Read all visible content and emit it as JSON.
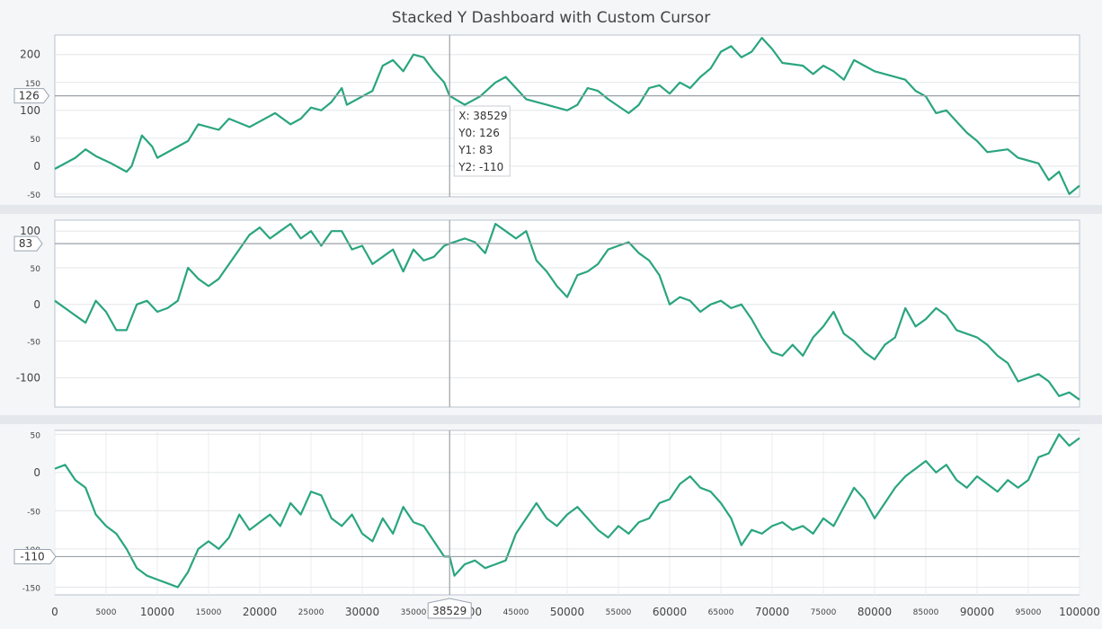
{
  "chart_data": {
    "title": "Stacked Y Dashboard with Custom Cursor",
    "type": "line",
    "x_range": [
      0,
      100000
    ],
    "x_major_ticks": [
      0,
      10000,
      20000,
      30000,
      40000,
      50000,
      60000,
      70000,
      80000,
      90000,
      100000
    ],
    "x_minor_ticks": [
      5000,
      15000,
      25000,
      35000,
      45000,
      55000,
      65000,
      75000,
      85000,
      95000
    ],
    "cursor": {
      "x": 38529,
      "x_label": "38529",
      "values": [
        126,
        83,
        -110
      ],
      "tooltip": [
        "X: 38529",
        "Y0: 126",
        "Y1: 83",
        "Y2: -110"
      ]
    },
    "panels": [
      {
        "name": "Y0",
        "ylim": [
          -55,
          235
        ],
        "major_ticks": [
          0,
          100,
          200
        ],
        "minor_ticks": [
          -50,
          50,
          150
        ],
        "cursor_label": "126",
        "points": [
          [
            0,
            -5
          ],
          [
            2000,
            15
          ],
          [
            3000,
            30
          ],
          [
            4000,
            18
          ],
          [
            5500,
            5
          ],
          [
            7000,
            -10
          ],
          [
            7500,
            0
          ],
          [
            8500,
            55
          ],
          [
            9500,
            35
          ],
          [
            10000,
            15
          ],
          [
            12000,
            35
          ],
          [
            13000,
            45
          ],
          [
            14000,
            75
          ],
          [
            16000,
            65
          ],
          [
            17000,
            85
          ],
          [
            19000,
            70
          ],
          [
            20000,
            80
          ],
          [
            21500,
            95
          ],
          [
            23000,
            75
          ],
          [
            24000,
            85
          ],
          [
            25000,
            105
          ],
          [
            26000,
            100
          ],
          [
            27000,
            115
          ],
          [
            28000,
            140
          ],
          [
            28500,
            110
          ],
          [
            30000,
            125
          ],
          [
            31000,
            135
          ],
          [
            32000,
            180
          ],
          [
            33000,
            190
          ],
          [
            34000,
            170
          ],
          [
            35000,
            200
          ],
          [
            36000,
            195
          ],
          [
            37000,
            170
          ],
          [
            38000,
            150
          ],
          [
            38529,
            126
          ],
          [
            40000,
            110
          ],
          [
            41500,
            125
          ],
          [
            43000,
            150
          ],
          [
            44000,
            160
          ],
          [
            45000,
            140
          ],
          [
            46000,
            120
          ],
          [
            48000,
            110
          ],
          [
            50000,
            100
          ],
          [
            51000,
            110
          ],
          [
            52000,
            140
          ],
          [
            53000,
            135
          ],
          [
            54000,
            120
          ],
          [
            56000,
            95
          ],
          [
            57000,
            110
          ],
          [
            58000,
            140
          ],
          [
            59000,
            145
          ],
          [
            60000,
            130
          ],
          [
            61000,
            150
          ],
          [
            62000,
            140
          ],
          [
            63000,
            160
          ],
          [
            64000,
            175
          ],
          [
            65000,
            205
          ],
          [
            66000,
            215
          ],
          [
            67000,
            195
          ],
          [
            68000,
            205
          ],
          [
            69000,
            230
          ],
          [
            70000,
            210
          ],
          [
            71000,
            185
          ],
          [
            73000,
            180
          ],
          [
            74000,
            165
          ],
          [
            75000,
            180
          ],
          [
            76000,
            170
          ],
          [
            77000,
            155
          ],
          [
            78000,
            190
          ],
          [
            79000,
            180
          ],
          [
            80000,
            170
          ],
          [
            81000,
            165
          ],
          [
            83000,
            155
          ],
          [
            84000,
            135
          ],
          [
            85000,
            125
          ],
          [
            86000,
            95
          ],
          [
            87000,
            100
          ],
          [
            88000,
            80
          ],
          [
            89000,
            60
          ],
          [
            90000,
            45
          ],
          [
            91000,
            25
          ],
          [
            93000,
            30
          ],
          [
            94000,
            15
          ],
          [
            96000,
            5
          ],
          [
            97000,
            -25
          ],
          [
            98000,
            -10
          ],
          [
            99000,
            -50
          ],
          [
            100000,
            -35
          ]
        ]
      },
      {
        "name": "Y1",
        "ylim": [
          -140,
          115
        ],
        "major_ticks": [
          -100,
          0,
          100
        ],
        "minor_ticks": [
          -50,
          50
        ],
        "cursor_label": "83",
        "points": [
          [
            0,
            5
          ],
          [
            1500,
            -10
          ],
          [
            3000,
            -25
          ],
          [
            4000,
            5
          ],
          [
            5000,
            -10
          ],
          [
            6000,
            -35
          ],
          [
            7000,
            -35
          ],
          [
            8000,
            0
          ],
          [
            9000,
            5
          ],
          [
            10000,
            -10
          ],
          [
            11000,
            -5
          ],
          [
            12000,
            5
          ],
          [
            13000,
            50
          ],
          [
            14000,
            35
          ],
          [
            15000,
            25
          ],
          [
            16000,
            35
          ],
          [
            17000,
            55
          ],
          [
            18000,
            75
          ],
          [
            19000,
            95
          ],
          [
            20000,
            105
          ],
          [
            21000,
            90
          ],
          [
            22000,
            100
          ],
          [
            23000,
            110
          ],
          [
            24000,
            90
          ],
          [
            25000,
            100
          ],
          [
            26000,
            80
          ],
          [
            27000,
            100
          ],
          [
            28000,
            100
          ],
          [
            29000,
            75
          ],
          [
            30000,
            80
          ],
          [
            31000,
            55
          ],
          [
            32000,
            65
          ],
          [
            33000,
            75
          ],
          [
            34000,
            45
          ],
          [
            35000,
            75
          ],
          [
            36000,
            60
          ],
          [
            37000,
            65
          ],
          [
            38000,
            80
          ],
          [
            38529,
            83
          ],
          [
            40000,
            90
          ],
          [
            41000,
            85
          ],
          [
            42000,
            70
          ],
          [
            43000,
            110
          ],
          [
            44000,
            100
          ],
          [
            45000,
            90
          ],
          [
            46000,
            100
          ],
          [
            47000,
            60
          ],
          [
            48000,
            45
          ],
          [
            49000,
            25
          ],
          [
            50000,
            10
          ],
          [
            51000,
            40
          ],
          [
            52000,
            45
          ],
          [
            53000,
            55
          ],
          [
            54000,
            75
          ],
          [
            55000,
            80
          ],
          [
            56000,
            85
          ],
          [
            57000,
            70
          ],
          [
            58000,
            60
          ],
          [
            59000,
            40
          ],
          [
            60000,
            0
          ],
          [
            61000,
            10
          ],
          [
            62000,
            5
          ],
          [
            63000,
            -10
          ],
          [
            64000,
            0
          ],
          [
            65000,
            5
          ],
          [
            66000,
            -5
          ],
          [
            67000,
            0
          ],
          [
            68000,
            -20
          ],
          [
            69000,
            -45
          ],
          [
            70000,
            -65
          ],
          [
            71000,
            -70
          ],
          [
            72000,
            -55
          ],
          [
            73000,
            -70
          ],
          [
            74000,
            -45
          ],
          [
            75000,
            -30
          ],
          [
            76000,
            -10
          ],
          [
            77000,
            -40
          ],
          [
            78000,
            -50
          ],
          [
            79000,
            -65
          ],
          [
            80000,
            -75
          ],
          [
            81000,
            -55
          ],
          [
            82000,
            -45
          ],
          [
            83000,
            -5
          ],
          [
            84000,
            -30
          ],
          [
            85000,
            -20
          ],
          [
            86000,
            -5
          ],
          [
            87000,
            -15
          ],
          [
            88000,
            -35
          ],
          [
            89000,
            -40
          ],
          [
            90000,
            -45
          ],
          [
            91000,
            -55
          ],
          [
            92000,
            -70
          ],
          [
            93000,
            -80
          ],
          [
            94000,
            -105
          ],
          [
            95000,
            -100
          ],
          [
            96000,
            -95
          ],
          [
            97000,
            -105
          ],
          [
            98000,
            -125
          ],
          [
            99000,
            -120
          ],
          [
            100000,
            -130
          ]
        ]
      },
      {
        "name": "Y2",
        "ylim": [
          -160,
          55
        ],
        "major_ticks": [
          0
        ],
        "minor_ticks": [
          -150,
          -100,
          -50,
          50
        ],
        "cursor_label": "-110",
        "points": [
          [
            0,
            5
          ],
          [
            1000,
            10
          ],
          [
            2000,
            -10
          ],
          [
            3000,
            -20
          ],
          [
            4000,
            -55
          ],
          [
            5000,
            -70
          ],
          [
            6000,
            -80
          ],
          [
            7000,
            -100
          ],
          [
            8000,
            -125
          ],
          [
            9000,
            -135
          ],
          [
            10000,
            -140
          ],
          [
            11000,
            -145
          ],
          [
            12000,
            -150
          ],
          [
            13000,
            -130
          ],
          [
            14000,
            -100
          ],
          [
            15000,
            -90
          ],
          [
            16000,
            -100
          ],
          [
            17000,
            -85
          ],
          [
            18000,
            -55
          ],
          [
            19000,
            -75
          ],
          [
            20000,
            -65
          ],
          [
            21000,
            -55
          ],
          [
            22000,
            -70
          ],
          [
            23000,
            -40
          ],
          [
            24000,
            -55
          ],
          [
            25000,
            -25
          ],
          [
            26000,
            -30
          ],
          [
            27000,
            -60
          ],
          [
            28000,
            -70
          ],
          [
            29000,
            -55
          ],
          [
            30000,
            -80
          ],
          [
            31000,
            -90
          ],
          [
            32000,
            -60
          ],
          [
            33000,
            -80
          ],
          [
            34000,
            -45
          ],
          [
            35000,
            -65
          ],
          [
            36000,
            -70
          ],
          [
            37000,
            -90
          ],
          [
            38000,
            -110
          ],
          [
            38529,
            -110
          ],
          [
            39000,
            -135
          ],
          [
            40000,
            -120
          ],
          [
            41000,
            -115
          ],
          [
            42000,
            -125
          ],
          [
            43000,
            -120
          ],
          [
            44000,
            -115
          ],
          [
            45000,
            -80
          ],
          [
            46000,
            -60
          ],
          [
            47000,
            -40
          ],
          [
            48000,
            -60
          ],
          [
            49000,
            -70
          ],
          [
            50000,
            -55
          ],
          [
            51000,
            -45
          ],
          [
            52000,
            -60
          ],
          [
            53000,
            -75
          ],
          [
            54000,
            -85
          ],
          [
            55000,
            -70
          ],
          [
            56000,
            -80
          ],
          [
            57000,
            -65
          ],
          [
            58000,
            -60
          ],
          [
            59000,
            -40
          ],
          [
            60000,
            -35
          ],
          [
            61000,
            -15
          ],
          [
            62000,
            -5
          ],
          [
            63000,
            -20
          ],
          [
            64000,
            -25
          ],
          [
            65000,
            -40
          ],
          [
            66000,
            -60
          ],
          [
            67000,
            -95
          ],
          [
            68000,
            -75
          ],
          [
            69000,
            -80
          ],
          [
            70000,
            -70
          ],
          [
            71000,
            -65
          ],
          [
            72000,
            -75
          ],
          [
            73000,
            -70
          ],
          [
            74000,
            -80
          ],
          [
            75000,
            -60
          ],
          [
            76000,
            -70
          ],
          [
            77000,
            -45
          ],
          [
            78000,
            -20
          ],
          [
            79000,
            -35
          ],
          [
            80000,
            -60
          ],
          [
            81000,
            -40
          ],
          [
            82000,
            -20
          ],
          [
            83000,
            -5
          ],
          [
            84000,
            5
          ],
          [
            85000,
            15
          ],
          [
            86000,
            0
          ],
          [
            87000,
            10
          ],
          [
            88000,
            -10
          ],
          [
            89000,
            -20
          ],
          [
            90000,
            -5
          ],
          [
            91000,
            -15
          ],
          [
            92000,
            -25
          ],
          [
            93000,
            -10
          ],
          [
            94000,
            -20
          ],
          [
            95000,
            -10
          ],
          [
            96000,
            20
          ],
          [
            97000,
            25
          ],
          [
            98000,
            50
          ],
          [
            99000,
            35
          ],
          [
            100000,
            45
          ]
        ]
      }
    ]
  }
}
